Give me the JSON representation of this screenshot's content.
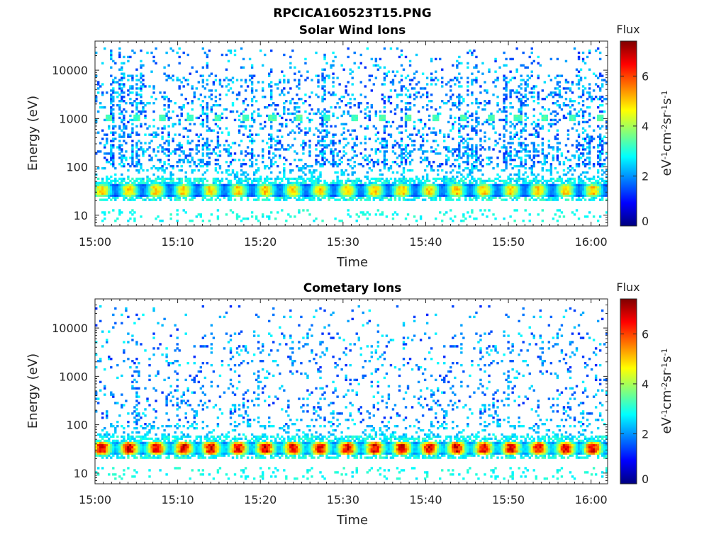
{
  "figure_title": "RPCICA160523T15.PNG",
  "colormap": [
    "#00007f",
    "#0000ff",
    "#007fff",
    "#00ffff",
    "#7fff7f",
    "#ffff00",
    "#ff7f00",
    "#ff0000",
    "#7f0000"
  ],
  "chart_data": [
    {
      "type": "heatmap",
      "title": "Solar Wind Ions",
      "xlabel": "Time",
      "ylabel": "Energy (eV)",
      "x_ticks": [
        "15:00",
        "15:10",
        "15:20",
        "15:30",
        "15:40",
        "15:50",
        "16:00"
      ],
      "xlim_minutes": [
        0,
        62
      ],
      "y_scale": "log",
      "ylim": [
        6,
        40000
      ],
      "y_ticks": [
        "10",
        "100",
        "1000",
        "10000"
      ],
      "y_tick_values": [
        10,
        100,
        1000,
        10000
      ],
      "colorbar": {
        "title": "Flux",
        "label_main": "eV",
        "label_sup": [
          "-1",
          "-2",
          "-1",
          "-1"
        ],
        "label_parts": [
          "cm",
          "sr",
          "s"
        ],
        "range": [
          0,
          7.4
        ],
        "ticks": [
          "0",
          "2",
          "4",
          "6"
        ],
        "tick_values": [
          0,
          2,
          4,
          6
        ]
      },
      "features": [
        {
          "energy_range": [
            25,
            45
          ],
          "flux": 4.5,
          "pattern": "continuous band"
        },
        {
          "energy_range": [
            850,
            1150
          ],
          "flux": 3.0,
          "pattern": "periodic blobs, ~3.3 min period"
        },
        {
          "energy_range": [
            100,
            30000
          ],
          "flux": 2.0,
          "pattern": "sparse scatter"
        }
      ]
    },
    {
      "type": "heatmap",
      "title": "Cometary Ions",
      "xlabel": "Time",
      "ylabel": "Energy (eV)",
      "x_ticks": [
        "15:00",
        "15:10",
        "15:20",
        "15:30",
        "15:40",
        "15:50",
        "16:00"
      ],
      "xlim_minutes": [
        0,
        62
      ],
      "y_scale": "log",
      "ylim": [
        6,
        40000
      ],
      "y_ticks": [
        "10",
        "100",
        "1000",
        "10000"
      ],
      "y_tick_values": [
        10,
        100,
        1000,
        10000
      ],
      "colorbar": {
        "title": "Flux",
        "label_main": "eV",
        "label_sup": [
          "-1",
          "-2",
          "-1",
          "-1"
        ],
        "label_parts": [
          "cm",
          "sr",
          "s"
        ],
        "range": [
          0,
          7.4
        ],
        "ticks": [
          "0",
          "2",
          "4",
          "6"
        ],
        "tick_values": [
          0,
          2,
          4,
          6
        ]
      },
      "features": [
        {
          "energy_range": [
            25,
            45
          ],
          "flux": 6.0,
          "pattern": "continuous band, periodic ~3.3 min"
        },
        {
          "energy_range": [
            100,
            30000
          ],
          "flux": 1.8,
          "pattern": "sparse scatter"
        }
      ]
    }
  ]
}
